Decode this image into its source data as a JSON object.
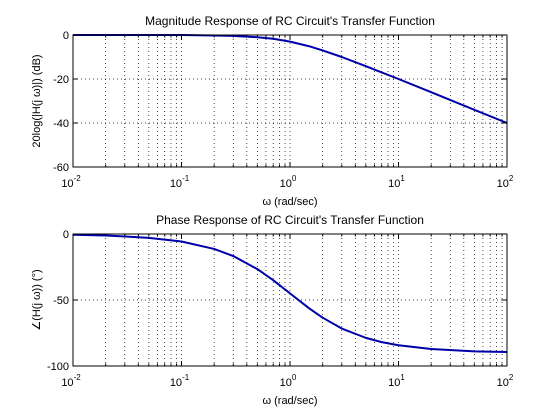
{
  "chart_data": [
    {
      "type": "line",
      "title": "Magnitude Response of RC Circuit's Transfer Function",
      "xlabel": "ω (rad/sec)",
      "ylabel": "20log(|H(j ω)|) (dB)",
      "xscale": "log",
      "xlim": [
        0.01,
        100
      ],
      "ylim": [
        -60,
        0
      ],
      "x_ticks": [
        0.01,
        0.1,
        1,
        10,
        100
      ],
      "x_tick_labels": [
        {
          "base": "10",
          "exp": "-2"
        },
        {
          "base": "10",
          "exp": "-1"
        },
        {
          "base": "10",
          "exp": "0"
        },
        {
          "base": "10",
          "exp": "1"
        },
        {
          "base": "10",
          "exp": "2"
        }
      ],
      "y_ticks": [
        0,
        -20,
        -40,
        -60
      ],
      "y_tick_labels": [
        "0",
        "-20",
        "-40",
        "-60"
      ],
      "grid": true,
      "series": [
        {
          "color": "#0000aa",
          "x": [
            0.01,
            0.02,
            0.05,
            0.1,
            0.2,
            0.3,
            0.5,
            0.7,
            1,
            1.5,
            2,
            3,
            5,
            7,
            10,
            20,
            50,
            100
          ],
          "y": [
            0.0,
            0.0,
            0.0,
            0.0,
            -0.2,
            -0.4,
            -1.0,
            -1.7,
            -3.0,
            -5.1,
            -7.0,
            -10.0,
            -14.2,
            -17.0,
            -20.0,
            -26.0,
            -34.0,
            -40.0
          ]
        }
      ]
    },
    {
      "type": "line",
      "title": "Phase Response of RC Circuit's Transfer Function",
      "xlabel": "ω (rad/sec)",
      "ylabel": "∠(H(j ω)) (°)",
      "xscale": "log",
      "xlim": [
        0.01,
        100
      ],
      "ylim": [
        -100,
        0
      ],
      "x_ticks": [
        0.01,
        0.1,
        1,
        10,
        100
      ],
      "x_tick_labels": [
        {
          "base": "10",
          "exp": "-2"
        },
        {
          "base": "10",
          "exp": "-1"
        },
        {
          "base": "10",
          "exp": "0"
        },
        {
          "base": "10",
          "exp": "1"
        },
        {
          "base": "10",
          "exp": "2"
        }
      ],
      "y_ticks": [
        0,
        -50,
        -100
      ],
      "y_tick_labels": [
        "0",
        "-50",
        "-100"
      ],
      "grid": true,
      "series": [
        {
          "color": "#0000aa",
          "x": [
            0.01,
            0.02,
            0.05,
            0.1,
            0.2,
            0.3,
            0.5,
            0.7,
            1,
            1.5,
            2,
            3,
            5,
            7,
            10,
            20,
            50,
            100
          ],
          "y": [
            -0.6,
            -1.1,
            -2.9,
            -5.7,
            -11.3,
            -16.7,
            -26.6,
            -35.0,
            -45.0,
            -56.3,
            -63.4,
            -71.6,
            -78.7,
            -81.9,
            -84.3,
            -87.1,
            -88.9,
            -89.4
          ]
        }
      ]
    }
  ]
}
